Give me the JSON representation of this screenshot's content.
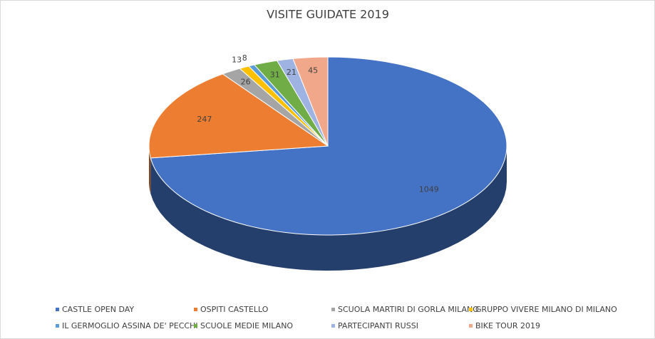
{
  "chart_data": {
    "type": "pie3d",
    "title": "VISITE GUIDATE 2019",
    "categories": [
      "CASTLE OPEN DAY",
      "OSPITI CASTELLO",
      "SCUOLA MARTIRI DI GORLA MILANO",
      "GRUPPO VIVERE MILANO DI MILANO",
      "IL GERMOGLIO ASSINA DE' PECCHI",
      "SCUOLE MEDIE MILANO",
      "PARTECIPANTI RUSSI",
      "BIKE TOUR 2019"
    ],
    "values": [
      1049,
      247,
      26,
      13,
      8,
      31,
      21,
      45
    ],
    "colors": [
      "#4472c4",
      "#ed7d31",
      "#a5a5a5",
      "#ffc000",
      "#5b9bd5",
      "#70ad47",
      "#9fb3e3",
      "#f1a88a"
    ],
    "legend": "bottom"
  }
}
